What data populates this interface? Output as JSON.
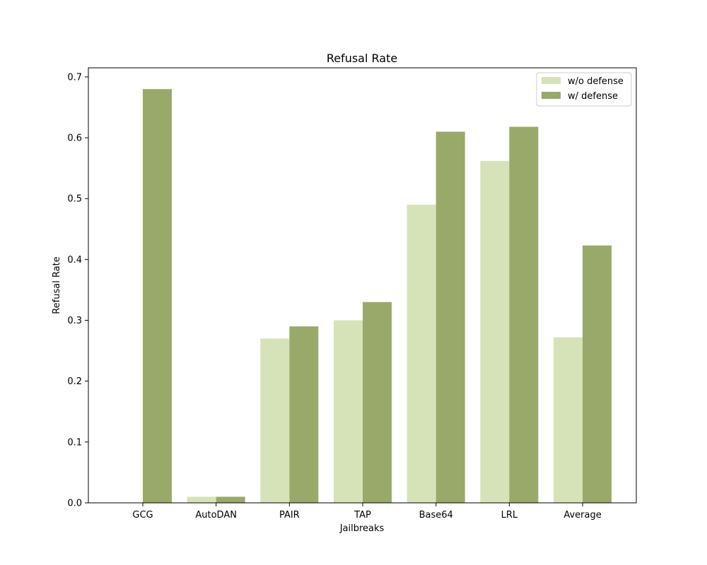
{
  "chart_data": {
    "type": "bar",
    "title": "Refusal Rate",
    "xlabel": "Jailbreaks",
    "ylabel": "Refusal Rate",
    "categories": [
      "GCG",
      "AutoDAN",
      "PAIR",
      "TAP",
      "Base64",
      "LRL",
      "Average"
    ],
    "series": [
      {
        "name": "w/o defense",
        "color": "#d6e3b8",
        "values": [
          0.0,
          0.01,
          0.27,
          0.3,
          0.49,
          0.562,
          0.272
        ]
      },
      {
        "name": "w/ defense",
        "color": "#98a96a",
        "values": [
          0.68,
          0.01,
          0.29,
          0.33,
          0.61,
          0.618,
          0.423
        ]
      }
    ],
    "ylim": [
      0,
      0.715
    ],
    "yticks": [
      0.0,
      0.1,
      0.2,
      0.3,
      0.4,
      0.5,
      0.6,
      0.7
    ],
    "ytick_labels": [
      "0.0",
      "0.1",
      "0.2",
      "0.3",
      "0.4",
      "0.5",
      "0.6",
      "0.7"
    ],
    "grid": false,
    "legend_position": "top-right"
  }
}
